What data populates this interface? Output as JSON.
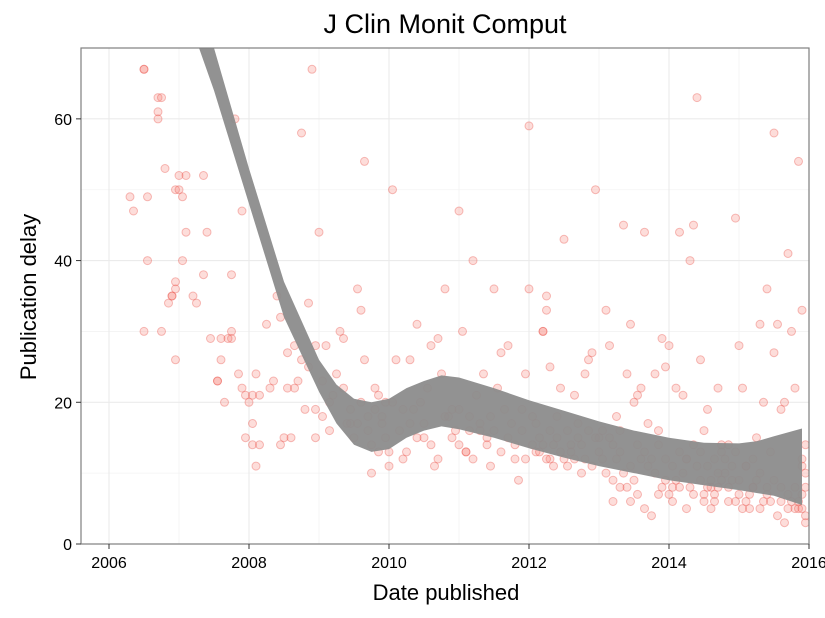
{
  "chart_data": {
    "type": "scatter",
    "title": "J Clin Monit Comput",
    "xlabel": "Date published",
    "ylabel": "Publication delay",
    "xlim": [
      2005.6,
      2016.0
    ],
    "ylim": [
      0,
      70
    ],
    "xticks": [
      2006,
      2008,
      2010,
      2012,
      2014,
      2016
    ],
    "xtick_labels": [
      "2006",
      "2008",
      "2010",
      "2012",
      "2014",
      "2016"
    ],
    "yticks": [
      0,
      20,
      40,
      60
    ],
    "ytick_labels": [
      "0",
      "20",
      "40",
      "60"
    ],
    "grid": true,
    "legend": "none",
    "point_color": "#f8766d",
    "point_stroke": "#e8483f",
    "ribbon_color": "#8c8c8c",
    "points": [
      [
        2006.3,
        49
      ],
      [
        2006.35,
        47
      ],
      [
        2006.5,
        67
      ],
      [
        2006.5,
        67
      ],
      [
        2006.5,
        30
      ],
      [
        2006.55,
        40
      ],
      [
        2006.55,
        49
      ],
      [
        2006.7,
        63
      ],
      [
        2006.75,
        63
      ],
      [
        2006.7,
        61
      ],
      [
        2006.7,
        60
      ],
      [
        2006.75,
        30
      ],
      [
        2006.8,
        53
      ],
      [
        2006.85,
        34
      ],
      [
        2006.9,
        35
      ],
      [
        2006.9,
        35
      ],
      [
        2006.95,
        36
      ],
      [
        2006.95,
        37
      ],
      [
        2006.95,
        50
      ],
      [
        2007.0,
        50
      ],
      [
        2007.0,
        52
      ],
      [
        2007.05,
        49
      ],
      [
        2007.05,
        40
      ],
      [
        2007.1,
        44
      ],
      [
        2006.95,
        26
      ],
      [
        2007.1,
        52
      ],
      [
        2007.2,
        35
      ],
      [
        2007.25,
        34
      ],
      [
        2007.35,
        38
      ],
      [
        2007.35,
        52
      ],
      [
        2007.4,
        44
      ],
      [
        2007.45,
        29
      ],
      [
        2007.55,
        23
      ],
      [
        2007.55,
        23
      ],
      [
        2007.6,
        29
      ],
      [
        2007.65,
        20
      ],
      [
        2007.75,
        38
      ],
      [
        2007.75,
        30
      ],
      [
        2007.75,
        29
      ],
      [
        2007.8,
        60
      ],
      [
        2007.9,
        47
      ],
      [
        2007.9,
        22
      ],
      [
        2007.95,
        21
      ],
      [
        2007.95,
        15
      ],
      [
        2008.0,
        20
      ],
      [
        2008.05,
        14
      ],
      [
        2008.05,
        21
      ],
      [
        2008.1,
        24
      ],
      [
        2008.1,
        11
      ],
      [
        2008.15,
        14
      ],
      [
        2008.3,
        22
      ],
      [
        2008.35,
        23
      ],
      [
        2008.4,
        35
      ],
      [
        2008.45,
        14
      ],
      [
        2008.5,
        15
      ],
      [
        2008.55,
        22
      ],
      [
        2008.6,
        15
      ],
      [
        2008.65,
        22
      ],
      [
        2008.7,
        23
      ],
      [
        2008.75,
        58
      ],
      [
        2008.75,
        26
      ],
      [
        2008.8,
        19
      ],
      [
        2008.85,
        34
      ],
      [
        2008.9,
        67
      ],
      [
        2008.95,
        28
      ],
      [
        2009.0,
        44
      ],
      [
        2008.95,
        15
      ],
      [
        2009.05,
        18
      ],
      [
        2009.1,
        28
      ],
      [
        2009.15,
        16
      ],
      [
        2009.2,
        21
      ],
      [
        2009.3,
        30
      ],
      [
        2009.35,
        29
      ],
      [
        2009.4,
        17
      ],
      [
        2009.45,
        17
      ],
      [
        2009.5,
        15
      ],
      [
        2009.55,
        36
      ],
      [
        2009.6,
        33
      ],
      [
        2009.6,
        20
      ],
      [
        2009.65,
        54
      ],
      [
        2009.65,
        26
      ],
      [
        2009.7,
        16
      ],
      [
        2009.75,
        14
      ],
      [
        2009.75,
        10
      ],
      [
        2009.8,
        22
      ],
      [
        2009.85,
        13
      ],
      [
        2009.9,
        18
      ],
      [
        2009.95,
        15
      ],
      [
        2010.0,
        13
      ],
      [
        2010.0,
        11
      ],
      [
        2010.05,
        50
      ],
      [
        2010.05,
        20
      ],
      [
        2010.1,
        26
      ],
      [
        2010.15,
        16
      ],
      [
        2010.2,
        12
      ],
      [
        2010.25,
        13
      ],
      [
        2010.3,
        26
      ],
      [
        2010.35,
        19
      ],
      [
        2010.4,
        31
      ],
      [
        2010.45,
        20
      ],
      [
        2010.5,
        17
      ],
      [
        2010.5,
        15
      ],
      [
        2010.55,
        22
      ],
      [
        2010.6,
        28
      ],
      [
        2010.65,
        11
      ],
      [
        2010.7,
        29
      ],
      [
        2010.75,
        24
      ],
      [
        2010.8,
        36
      ],
      [
        2010.85,
        18
      ],
      [
        2010.9,
        19
      ],
      [
        2010.95,
        16
      ],
      [
        2011.0,
        47
      ],
      [
        2011.05,
        30
      ],
      [
        2011.1,
        13
      ],
      [
        2011.15,
        18
      ],
      [
        2011.2,
        40
      ],
      [
        2011.25,
        21
      ],
      [
        2011.3,
        16
      ],
      [
        2011.35,
        24
      ],
      [
        2011.4,
        15
      ],
      [
        2011.45,
        11
      ],
      [
        2011.5,
        36
      ],
      [
        2011.55,
        22
      ],
      [
        2011.6,
        27
      ],
      [
        2011.7,
        28
      ],
      [
        2011.75,
        17
      ],
      [
        2011.8,
        14
      ],
      [
        2011.85,
        9
      ],
      [
        2011.9,
        19
      ],
      [
        2011.95,
        24
      ],
      [
        2012.0,
        36
      ],
      [
        2012.0,
        59
      ],
      [
        2012.05,
        18
      ],
      [
        2012.1,
        13
      ],
      [
        2012.15,
        15
      ],
      [
        2012.2,
        30
      ],
      [
        2012.2,
        30
      ],
      [
        2012.25,
        35
      ],
      [
        2012.25,
        33
      ],
      [
        2012.3,
        25
      ],
      [
        2012.3,
        12
      ],
      [
        2012.35,
        11
      ],
      [
        2012.4,
        18
      ],
      [
        2012.45,
        22
      ],
      [
        2012.5,
        43
      ],
      [
        2012.55,
        16
      ],
      [
        2012.6,
        13
      ],
      [
        2012.65,
        21
      ],
      [
        2012.7,
        15
      ],
      [
        2012.75,
        10
      ],
      [
        2012.8,
        24
      ],
      [
        2012.85,
        26
      ],
      [
        2012.9,
        27
      ],
      [
        2012.95,
        50
      ],
      [
        2013.0,
        15
      ],
      [
        2013.05,
        12
      ],
      [
        2013.1,
        33
      ],
      [
        2013.15,
        28
      ],
      [
        2013.2,
        9
      ],
      [
        2013.25,
        18
      ],
      [
        2013.3,
        13
      ],
      [
        2013.35,
        45
      ],
      [
        2013.4,
        24
      ],
      [
        2013.45,
        31
      ],
      [
        2013.5,
        20
      ],
      [
        2013.55,
        21
      ],
      [
        2013.6,
        22
      ],
      [
        2013.65,
        44
      ],
      [
        2013.7,
        17
      ],
      [
        2013.75,
        4
      ],
      [
        2013.8,
        24
      ],
      [
        2013.85,
        16
      ],
      [
        2013.9,
        29
      ],
      [
        2013.95,
        25
      ],
      [
        2014.0,
        28
      ],
      [
        2014.05,
        8
      ],
      [
        2014.1,
        22
      ],
      [
        2014.15,
        44
      ],
      [
        2014.2,
        21
      ],
      [
        2014.25,
        12
      ],
      [
        2014.3,
        40
      ],
      [
        2014.35,
        45
      ],
      [
        2014.4,
        63
      ],
      [
        2014.45,
        26
      ],
      [
        2014.5,
        16
      ],
      [
        2014.55,
        19
      ],
      [
        2014.6,
        8
      ],
      [
        2014.65,
        7
      ],
      [
        2014.7,
        22
      ],
      [
        2014.75,
        14
      ],
      [
        2014.8,
        10
      ],
      [
        2014.85,
        6
      ],
      [
        2014.9,
        11
      ],
      [
        2014.95,
        46
      ],
      [
        2015.0,
        28
      ],
      [
        2015.05,
        22
      ],
      [
        2015.1,
        11
      ],
      [
        2015.15,
        5
      ],
      [
        2015.2,
        8
      ],
      [
        2015.25,
        15
      ],
      [
        2015.3,
        31
      ],
      [
        2015.35,
        20
      ],
      [
        2015.4,
        36
      ],
      [
        2015.45,
        13
      ],
      [
        2015.5,
        58
      ],
      [
        2015.5,
        27
      ],
      [
        2015.55,
        31
      ],
      [
        2015.6,
        19
      ],
      [
        2015.65,
        20
      ],
      [
        2015.7,
        41
      ],
      [
        2015.75,
        30
      ],
      [
        2015.8,
        22
      ],
      [
        2015.85,
        54
      ],
      [
        2015.9,
        33
      ],
      [
        2015.9,
        12
      ],
      [
        2015.95,
        8
      ],
      [
        2012.1,
        17
      ],
      [
        2012.2,
        14
      ],
      [
        2012.3,
        16
      ],
      [
        2012.4,
        15
      ],
      [
        2012.5,
        12
      ],
      [
        2012.6,
        14
      ],
      [
        2012.7,
        17
      ],
      [
        2012.8,
        12
      ],
      [
        2012.9,
        11
      ],
      [
        2013.0,
        13
      ],
      [
        2013.1,
        10
      ],
      [
        2013.2,
        14
      ],
      [
        2013.3,
        16
      ],
      [
        2013.4,
        8
      ],
      [
        2013.5,
        9
      ],
      [
        2013.6,
        12
      ],
      [
        2013.7,
        11
      ],
      [
        2013.8,
        10
      ],
      [
        2013.9,
        8
      ],
      [
        2014.0,
        7
      ],
      [
        2014.1,
        9
      ],
      [
        2014.2,
        10
      ],
      [
        2014.3,
        8
      ],
      [
        2014.4,
        11
      ],
      [
        2014.5,
        7
      ],
      [
        2014.6,
        9
      ],
      [
        2014.7,
        10
      ],
      [
        2014.8,
        12
      ],
      [
        2014.9,
        9
      ],
      [
        2015.0,
        7
      ],
      [
        2015.1,
        6
      ],
      [
        2015.2,
        8
      ],
      [
        2015.3,
        10
      ],
      [
        2015.4,
        8
      ],
      [
        2015.5,
        9
      ],
      [
        2015.6,
        6
      ],
      [
        2015.7,
        7
      ],
      [
        2015.8,
        5
      ],
      [
        2015.85,
        6
      ],
      [
        2015.9,
        7
      ],
      [
        2015.95,
        10
      ],
      [
        2015.95,
        4
      ],
      [
        2015.0,
        9
      ],
      [
        2015.1,
        11
      ],
      [
        2015.2,
        12
      ],
      [
        2015.3,
        5
      ],
      [
        2015.4,
        7
      ],
      [
        2015.55,
        4
      ],
      [
        2015.65,
        3
      ],
      [
        2015.75,
        6
      ],
      [
        2015.85,
        5
      ],
      [
        2015.9,
        11
      ],
      [
        2015.95,
        14
      ],
      [
        2015.95,
        3
      ],
      [
        2014.5,
        6
      ],
      [
        2014.6,
        5
      ],
      [
        2014.7,
        8
      ],
      [
        2014.75,
        9
      ],
      [
        2014.95,
        6
      ],
      [
        2015.15,
        7
      ],
      [
        2015.25,
        9
      ],
      [
        2015.45,
        6
      ],
      [
        2015.6,
        8
      ],
      [
        2013.2,
        6
      ],
      [
        2013.3,
        8
      ],
      [
        2013.45,
        6
      ],
      [
        2013.55,
        7
      ],
      [
        2013.65,
        5
      ],
      [
        2013.85,
        7
      ],
      [
        2013.95,
        9
      ],
      [
        2014.05,
        6
      ],
      [
        2014.15,
        8
      ],
      [
        2014.25,
        5
      ],
      [
        2014.35,
        7
      ],
      [
        2014.45,
        9
      ],
      [
        2014.55,
        8
      ],
      [
        2014.65,
        6
      ],
      [
        2014.85,
        8
      ],
      [
        2015.05,
        5
      ],
      [
        2015.35,
        6
      ],
      [
        2015.7,
        5
      ],
      [
        2015.8,
        8
      ],
      [
        2015.9,
        5
      ],
      [
        2010.6,
        14
      ],
      [
        2010.7,
        12
      ],
      [
        2010.8,
        18
      ],
      [
        2010.9,
        15
      ],
      [
        2011.0,
        14
      ],
      [
        2011.1,
        13
      ],
      [
        2011.2,
        12
      ],
      [
        2011.3,
        17
      ],
      [
        2011.4,
        14
      ],
      [
        2011.5,
        16
      ],
      [
        2011.6,
        13
      ],
      [
        2011.7,
        15
      ],
      [
        2011.8,
        12
      ],
      [
        2011.9,
        16
      ],
      [
        2011.95,
        12
      ],
      [
        2011.0,
        19
      ],
      [
        2011.15,
        16
      ],
      [
        2011.45,
        18
      ],
      [
        2011.65,
        19
      ],
      [
        2012.05,
        14
      ],
      [
        2012.15,
        13
      ],
      [
        2012.25,
        12
      ],
      [
        2012.35,
        14
      ],
      [
        2012.45,
        13
      ],
      [
        2012.55,
        11
      ],
      [
        2012.65,
        12
      ],
      [
        2012.75,
        14
      ],
      [
        2012.85,
        16
      ],
      [
        2012.95,
        15
      ],
      [
        2013.05,
        16
      ],
      [
        2013.15,
        15
      ],
      [
        2013.25,
        12
      ],
      [
        2013.35,
        10
      ],
      [
        2013.45,
        11
      ],
      [
        2013.55,
        14
      ],
      [
        2013.65,
        13
      ],
      [
        2013.75,
        12
      ],
      [
        2013.85,
        14
      ],
      [
        2013.95,
        12
      ],
      [
        2014.05,
        11
      ],
      [
        2014.15,
        13
      ],
      [
        2014.25,
        12
      ],
      [
        2014.35,
        14
      ],
      [
        2014.45,
        13
      ],
      [
        2014.55,
        11
      ],
      [
        2014.65,
        12
      ],
      [
        2014.75,
        13
      ],
      [
        2014.85,
        14
      ],
      [
        2014.95,
        13
      ],
      [
        2010.2,
        19
      ],
      [
        2010.3,
        17
      ],
      [
        2010.4,
        15
      ],
      [
        2009.9,
        17
      ],
      [
        2009.8,
        19
      ],
      [
        2009.7,
        18
      ],
      [
        2009.95,
        20
      ],
      [
        2009.85,
        21
      ],
      [
        2009.55,
        17
      ],
      [
        2009.45,
        19
      ],
      [
        2009.35,
        22
      ],
      [
        2009.25,
        24
      ],
      [
        2009.15,
        20
      ],
      [
        2009.05,
        23
      ],
      [
        2008.95,
        19
      ],
      [
        2008.85,
        25
      ],
      [
        2008.65,
        28
      ],
      [
        2008.55,
        27
      ],
      [
        2008.45,
        32
      ],
      [
        2008.25,
        31
      ],
      [
        2008.15,
        21
      ],
      [
        2008.05,
        17
      ],
      [
        2007.85,
        24
      ],
      [
        2007.7,
        29
      ],
      [
        2007.6,
        26
      ]
    ],
    "smooth_x": [
      2006.0,
      2006.5,
      2007.0,
      2007.5,
      2008.0,
      2008.5,
      2009.0,
      2009.25,
      2009.5,
      2009.75,
      2010.0,
      2010.25,
      2010.5,
      2010.75,
      2011.0,
      2011.5,
      2012.0,
      2012.5,
      2013.0,
      2013.5,
      2014.0,
      2014.5,
      2015.0,
      2015.25,
      2015.5,
      2015.9
    ],
    "smooth_upper": [
      125,
      105,
      86,
      70,
      53,
      37,
      26,
      22.5,
      20.5,
      20,
      20.5,
      22,
      23,
      23.8,
      23.5,
      22,
      20.3,
      18.8,
      17.3,
      16,
      15,
      14.3,
      14.2,
      14.5,
      15.2,
      16.3
    ],
    "smooth_lower": [
      109,
      93,
      78,
      64,
      48,
      32,
      21.5,
      17,
      14,
      13,
      13.4,
      15,
      16,
      16.6,
      16.2,
      15,
      13.5,
      12.2,
      11,
      10,
      9,
      8.3,
      7.6,
      7.2,
      6.8,
      5.5
    ]
  }
}
